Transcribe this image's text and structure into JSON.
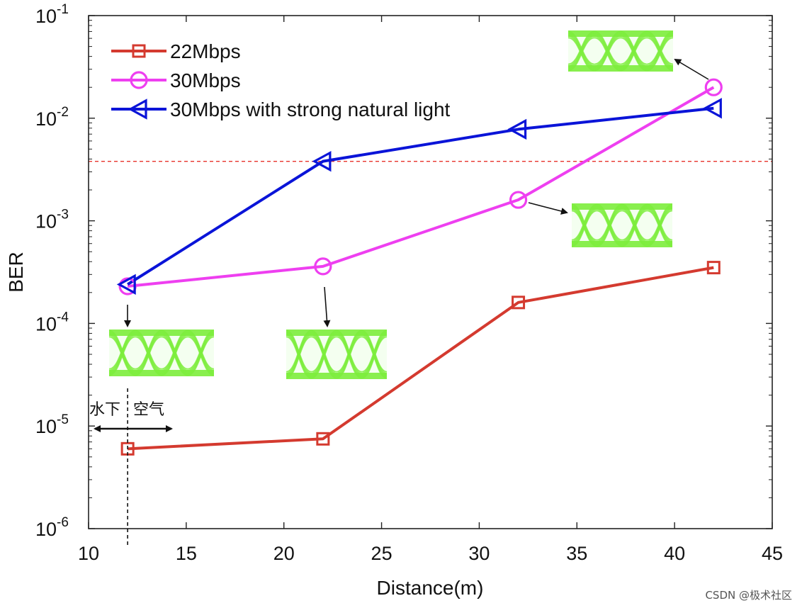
{
  "chart_data": {
    "type": "line",
    "title": "",
    "xlabel": "Distance(m)",
    "ylabel": "BER",
    "xlim": [
      10,
      45
    ],
    "ylim_log10": [
      -6,
      -1
    ],
    "yscale": "log",
    "x_ticks": [
      10,
      15,
      20,
      25,
      30,
      35,
      40,
      45
    ],
    "y_tick_exponents": [
      "-1",
      "-2",
      "-3",
      "-4",
      "-5",
      "-6"
    ],
    "y_tick_base": "10",
    "threshold_ber": 0.0038,
    "legend_position": "top-left",
    "series": [
      {
        "name": "22Mbps",
        "color": "#d43a2f",
        "marker": "square",
        "x": [
          12,
          22,
          32,
          42
        ],
        "y": [
          6e-06,
          7.5e-06,
          0.00016,
          0.00035
        ]
      },
      {
        "name": "30Mbps",
        "color": "#ee3ff0",
        "marker": "circle",
        "x": [
          12,
          22,
          32,
          42
        ],
        "y": [
          0.00023,
          0.00036,
          0.0016,
          0.02
        ]
      },
      {
        "name": "30Mbps with strong natural light",
        "color": "#0a14d8",
        "marker": "triangle-left",
        "x": [
          12,
          22,
          32,
          42
        ],
        "y": [
          0.00024,
          0.0038,
          0.0078,
          0.0125
        ]
      }
    ],
    "annotations": {
      "underwater": "水下",
      "air": "空气",
      "boundary_x": 12
    },
    "eye_diagram_color": "#7ded3c"
  },
  "watermark": "CSDN @极术社区"
}
